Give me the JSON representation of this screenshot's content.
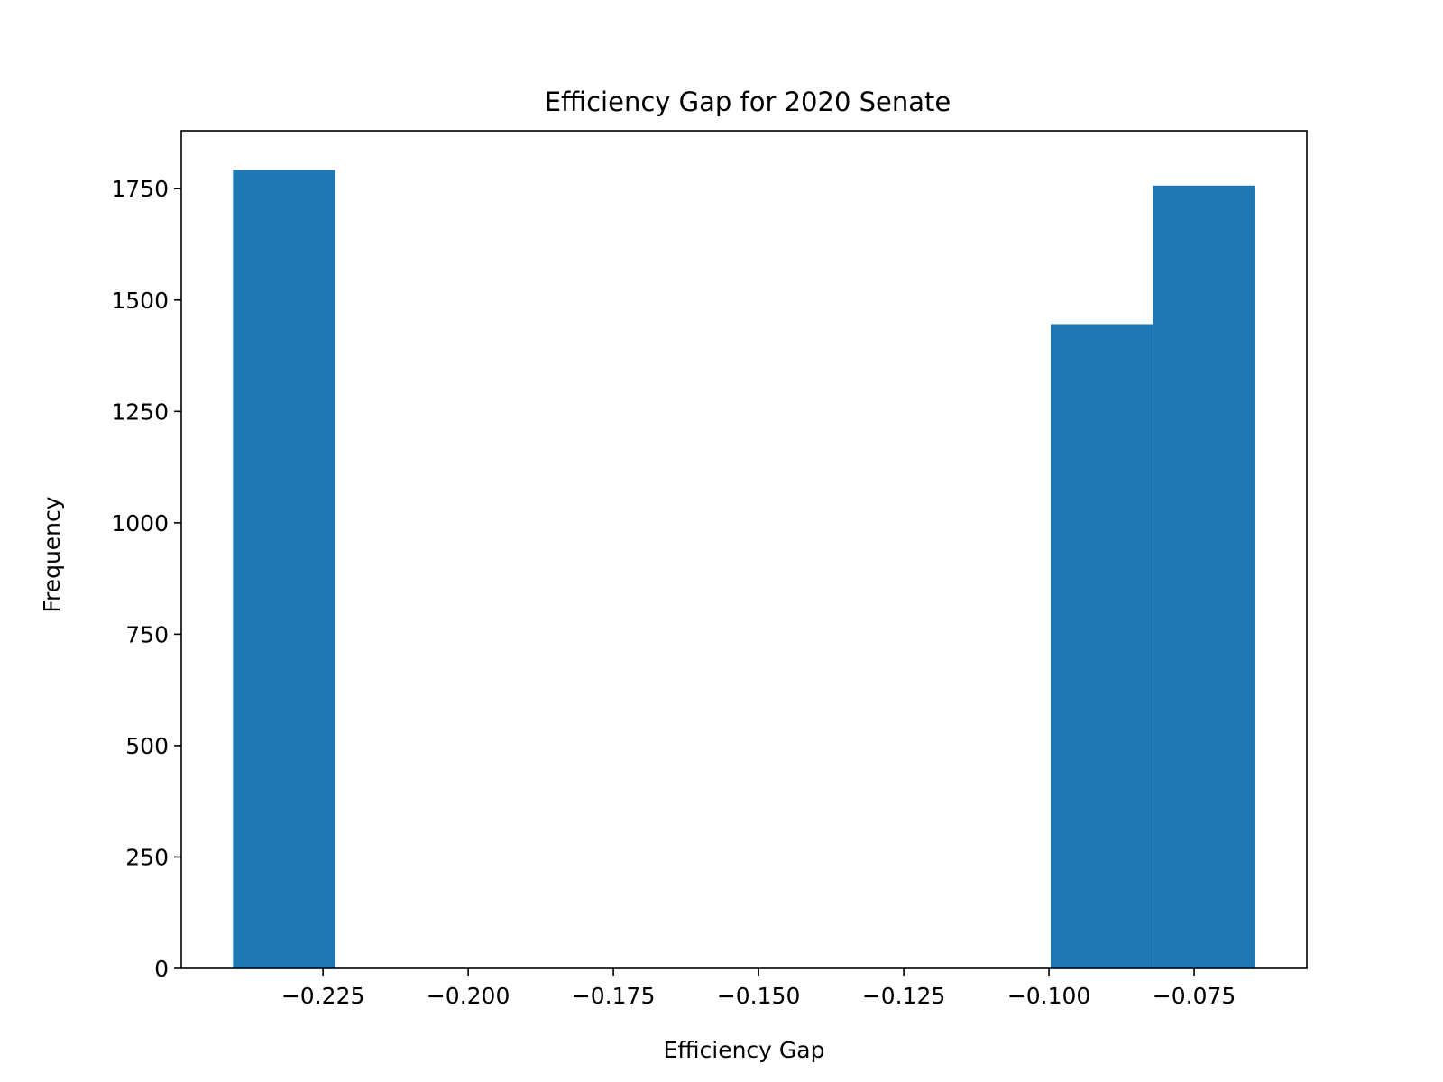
{
  "chart_data": {
    "type": "bar",
    "title": "Efficiency Gap for 2020 Senate",
    "xlabel": "Efficiency Gap",
    "ylabel": "Frequency",
    "bin_edges": [
      -0.2405,
      -0.2229,
      -0.2053,
      -0.1877,
      -0.1701,
      -0.1525,
      -0.1349,
      -0.1173,
      -0.0997,
      -0.0821,
      -0.0645
    ],
    "values": [
      1792,
      0,
      0,
      0,
      0,
      0,
      0,
      0,
      1446,
      1757
    ],
    "xlim": [
      -0.2494,
      -0.0556
    ],
    "ylim": [
      0,
      1880
    ],
    "xticks": [
      -0.225,
      -0.2,
      -0.175,
      -0.15,
      -0.125,
      -0.1,
      -0.075
    ],
    "xtick_labels": [
      "−0.225",
      "−0.200",
      "−0.175",
      "−0.150",
      "−0.125",
      "−0.100",
      "−0.075"
    ],
    "yticks": [
      0,
      250,
      500,
      750,
      1000,
      1250,
      1500,
      1750
    ],
    "ytick_labels": [
      "0",
      "250",
      "500",
      "750",
      "1000",
      "1250",
      "1500",
      "1750"
    ],
    "bar_color": "#1f77b4",
    "grid": false,
    "legend": "none"
  }
}
